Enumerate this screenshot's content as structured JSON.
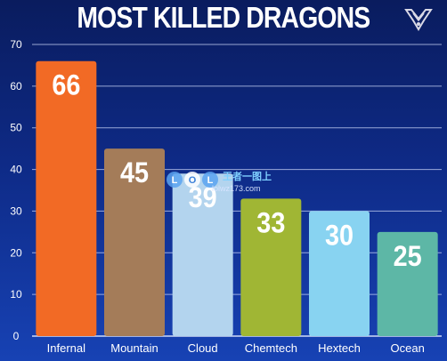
{
  "chart_data": {
    "type": "bar",
    "title": "MOST KILLED DRAGONS",
    "categories": [
      "Infernal",
      "Mountain",
      "Cloud",
      "Chemtech",
      "Hextech",
      "Ocean"
    ],
    "values": [
      66,
      45,
      39,
      33,
      30,
      25
    ],
    "data_labels": [
      "66",
      "45",
      "39",
      "33",
      "30",
      "25"
    ],
    "bar_colors": [
      "#f26a25",
      "#a47c59",
      "#b3d4ee",
      "#a0b634",
      "#88d3f1",
      "#5db7a6"
    ],
    "ylim": [
      0,
      70
    ],
    "yticks": [
      0,
      10,
      20,
      30,
      40,
      50,
      60,
      70
    ],
    "ytick_labels": [
      "0",
      "10",
      "20",
      "30",
      "40",
      "50",
      "60",
      "70"
    ],
    "grid": true,
    "xlabel": "",
    "ylabel": ""
  },
  "watermark": {
    "logo_text": "LOL",
    "brand_text": "王者一图上",
    "url_text": "lolwz173.com"
  },
  "logo": {
    "icon": "worlds-trophy-icon"
  }
}
